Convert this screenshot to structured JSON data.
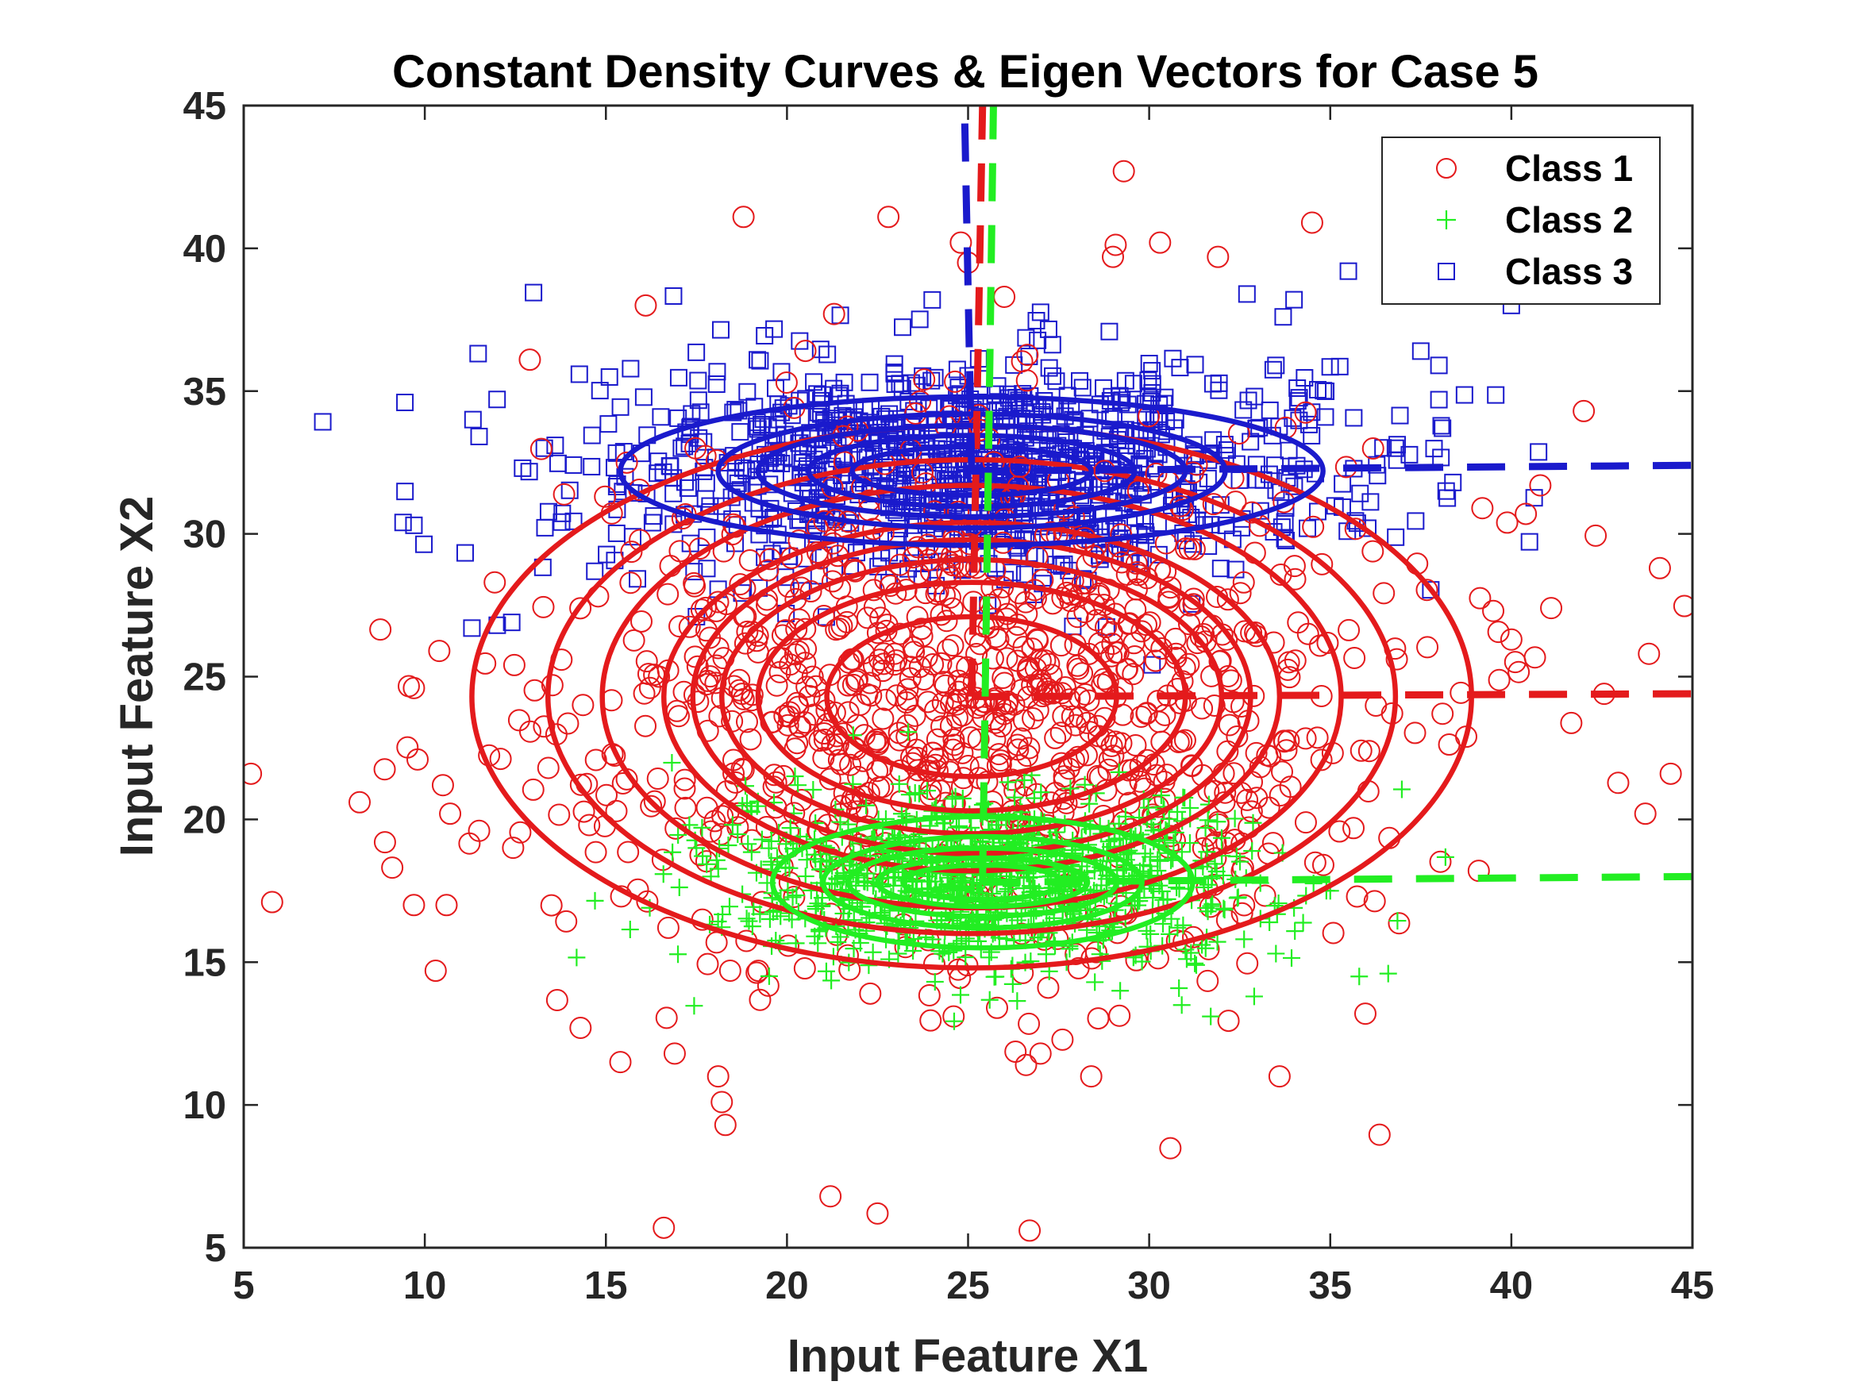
{
  "chart_data": {
    "type": "scatter",
    "title": "Constant Density Curves & Eigen Vectors for Case 5",
    "xlabel": "Input Feature X1",
    "ylabel": "Input Feature X2",
    "xlim": [
      5,
      45
    ],
    "ylim": [
      5,
      45
    ],
    "xticks": [
      "5",
      "10",
      "15",
      "20",
      "25",
      "30",
      "35",
      "40",
      "45"
    ],
    "yticks": [
      "5",
      "10",
      "15",
      "20",
      "25",
      "30",
      "35",
      "40",
      "45"
    ],
    "grid": false,
    "legend_position": "top-right",
    "series": [
      {
        "name": "Class 1",
        "marker": "circle",
        "color": "#e41a1c",
        "cloud": {
          "mean": [
            25,
            24.3
          ],
          "std": [
            5.8,
            4.6
          ],
          "count": 1000
        },
        "points": [
          [
            5.2,
            21.6
          ],
          [
            8.2,
            20.6
          ],
          [
            8.9,
            19.2
          ],
          [
            9.7,
            17.0
          ],
          [
            9.7,
            24.6
          ],
          [
            9.8,
            22.1
          ],
          [
            10.3,
            14.7
          ],
          [
            10.4,
            25.9
          ],
          [
            10.6,
            17.0
          ],
          [
            10.7,
            20.2
          ],
          [
            10.5,
            21.2
          ],
          [
            11.5,
            19.6
          ],
          [
            12.9,
            36.1
          ],
          [
            16.1,
            38.0
          ],
          [
            18.8,
            41.1
          ],
          [
            22.8,
            41.1
          ],
          [
            29.3,
            42.7
          ],
          [
            21.3,
            37.7
          ],
          [
            29.0,
            39.7
          ],
          [
            30.3,
            40.2
          ],
          [
            31.9,
            39.7
          ],
          [
            34.5,
            40.9
          ],
          [
            24.8,
            40.2
          ],
          [
            25.0,
            39.5
          ],
          [
            26.0,
            38.3
          ],
          [
            42.0,
            34.3
          ],
          [
            43.8,
            25.8
          ],
          [
            44.1,
            28.8
          ],
          [
            44.4,
            21.6
          ],
          [
            43.7,
            20.2
          ],
          [
            41.1,
            27.4
          ],
          [
            40.8,
            31.7
          ],
          [
            40.4,
            30.7
          ],
          [
            40.0,
            26.3
          ],
          [
            39.5,
            27.3
          ],
          [
            39.2,
            30.9
          ],
          [
            39.1,
            18.2
          ],
          [
            38.1,
            23.7
          ],
          [
            21.2,
            6.8
          ],
          [
            22.5,
            6.2
          ],
          [
            16.6,
            5.7
          ],
          [
            26.7,
            5.6
          ],
          [
            18.3,
            9.3
          ],
          [
            18.1,
            11.0
          ],
          [
            18.2,
            10.1
          ],
          [
            16.9,
            11.8
          ],
          [
            15.4,
            11.5
          ],
          [
            14.3,
            12.7
          ],
          [
            27.0,
            11.8
          ],
          [
            28.4,
            11.0
          ],
          [
            33.6,
            11.0
          ],
          [
            26.6,
            11.4
          ],
          [
            24.6,
            13.1
          ],
          [
            25.8,
            13.4
          ],
          [
            22.3,
            13.9
          ]
        ]
      },
      {
        "name": "Class 2",
        "marker": "plus",
        "color": "#22ee22",
        "cloud": {
          "mean": [
            25.6,
            18.0
          ],
          "std": [
            3.6,
            1.5
          ],
          "count": 1000
        },
        "points": [
          [
            35.8,
            14.5
          ],
          [
            36.6,
            14.6
          ],
          [
            31.7,
            13.1
          ],
          [
            30.9,
            13.5
          ],
          [
            32.9,
            13.8
          ],
          [
            33.5,
            15.3
          ],
          [
            34.0,
            16.9
          ],
          [
            35.0,
            17.5
          ],
          [
            28.5,
            14.3
          ],
          [
            29.2,
            14.0
          ],
          [
            17.5,
            19.0
          ],
          [
            17.9,
            18.0
          ],
          [
            19.0,
            20.3
          ],
          [
            20.3,
            21.2
          ]
        ]
      },
      {
        "name": "Class 3",
        "marker": "square",
        "color": "#1a1acc",
        "cloud": {
          "mean": [
            25.2,
            32.3
          ],
          "std": [
            5.2,
            1.9
          ],
          "count": 1000
        },
        "points": [
          [
            9.4,
            30.4
          ],
          [
            9.7,
            30.3
          ],
          [
            11.3,
            26.7
          ],
          [
            12.0,
            26.8
          ],
          [
            12.4,
            26.9
          ],
          [
            12.7,
            32.3
          ],
          [
            13.3,
            33.0
          ],
          [
            13.6,
            33.1
          ],
          [
            17.5,
            27.1
          ],
          [
            35.5,
            39.2
          ],
          [
            40.0,
            38.0
          ],
          [
            37.5,
            36.4
          ],
          [
            38.0,
            35.9
          ],
          [
            38.0,
            34.7
          ],
          [
            38.1,
            33.7
          ],
          [
            36.8,
            33.0
          ],
          [
            38.2,
            31.5
          ],
          [
            33.5,
            35.9
          ],
          [
            34.0,
            38.2
          ],
          [
            32.7,
            38.4
          ],
          [
            33.7,
            37.6
          ]
        ]
      }
    ],
    "ellipses": [
      {
        "class": "Class 1",
        "cx": 25.1,
        "cy": 24.3,
        "rx": [
          4.0,
          5.9,
          6.9,
          7.7,
          8.5,
          10.2,
          11.7,
          13.8
        ],
        "ry": [
          2.8,
          4.0,
          4.8,
          5.5,
          6.1,
          7.4,
          8.3,
          9.5
        ]
      },
      {
        "class": "Class 3",
        "cx": 25.1,
        "cy": 32.2,
        "rx": [
          3.3,
          4.5,
          5.9,
          7.0,
          9.7
        ],
        "ry": [
          0.85,
          1.25,
          1.6,
          2.0,
          2.6
        ]
      },
      {
        "class": "Class 2",
        "cx": 25.4,
        "cy": 17.8,
        "rx": [
          2.2,
          2.9,
          3.7,
          4.4,
          5.8
        ],
        "ry": [
          0.6,
          0.85,
          1.2,
          1.6,
          2.3
        ]
      }
    ],
    "eigen_vectors": [
      {
        "class": "Class 1",
        "points": [
          [
            25.1,
            24.3
          ],
          [
            45,
            24.4
          ]
        ]
      },
      {
        "class": "Class 1",
        "points": [
          [
            25.1,
            24.3
          ],
          [
            25.4,
            45
          ]
        ]
      },
      {
        "class": "Class 3",
        "points": [
          [
            25.1,
            32.2
          ],
          [
            45,
            32.4
          ]
        ]
      },
      {
        "class": "Class 3",
        "points": [
          [
            25.1,
            32.2
          ],
          [
            24.9,
            45
          ]
        ]
      },
      {
        "class": "Class 2",
        "points": [
          [
            25.4,
            17.8
          ],
          [
            45,
            18.0
          ]
        ]
      },
      {
        "class": "Class 2",
        "points": [
          [
            25.4,
            17.8
          ],
          [
            25.7,
            45
          ]
        ]
      }
    ]
  }
}
